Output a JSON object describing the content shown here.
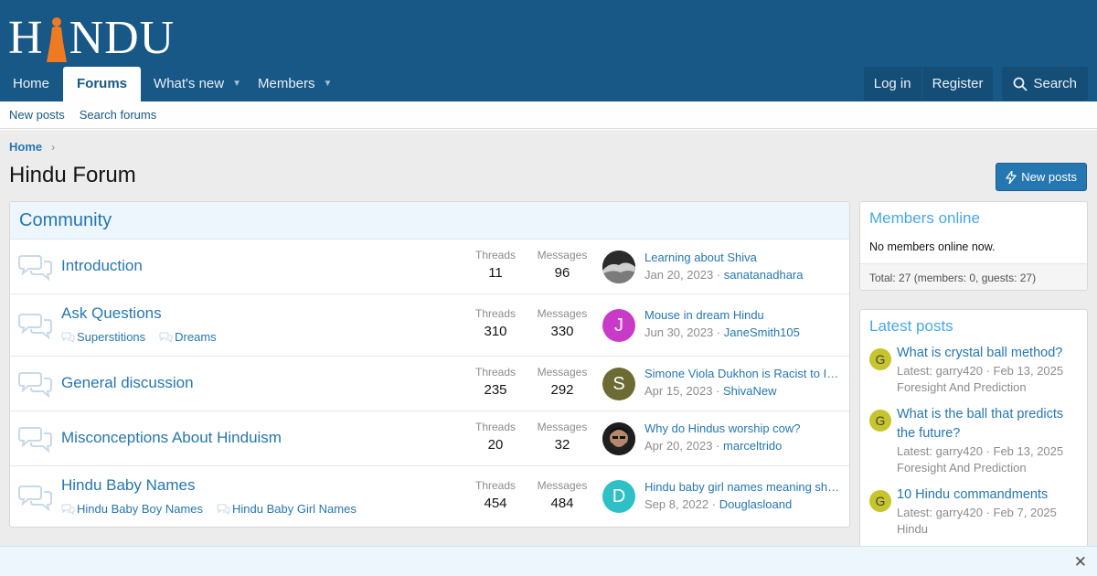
{
  "logo": {
    "left": "H",
    "right": "NDU"
  },
  "nav": {
    "tabs": [
      {
        "label": "Home"
      },
      {
        "label": "Forums"
      },
      {
        "label": "What's new"
      },
      {
        "label": "Members"
      }
    ],
    "login": "Log in",
    "register": "Register",
    "search": "Search"
  },
  "subnav": {
    "new_posts": "New posts",
    "search_forums": "Search forums"
  },
  "breadcrumb": {
    "home": "Home"
  },
  "page": {
    "title": "Hindu Forum",
    "new_posts_button": "New posts"
  },
  "community": {
    "title": "Community",
    "threads_label": "Threads",
    "messages_label": "Messages",
    "nodes": [
      {
        "title": "Introduction",
        "threads": "11",
        "messages": "96",
        "last_title": "Learning about Shiva",
        "last_date": "Jan 20, 2023",
        "last_user": "sanatanadhara",
        "avatar_letter": "",
        "avatar_color": "#2b2b2b",
        "subforums": []
      },
      {
        "title": "Ask Questions",
        "threads": "310",
        "messages": "330",
        "last_title": "Mouse in dream Hindu",
        "last_date": "Jun 30, 2023",
        "last_user": "JaneSmith105",
        "avatar_letter": "J",
        "avatar_color": "#c93ac9",
        "subforums": [
          "Superstitions",
          "Dreams"
        ]
      },
      {
        "title": "General discussion",
        "threads": "235",
        "messages": "292",
        "last_title": "Simone Viola Dukhon is Racist to In...",
        "last_date": "Apr 15, 2023",
        "last_user": "ShivaNew",
        "avatar_letter": "S",
        "avatar_color": "#6b6b33",
        "subforums": []
      },
      {
        "title": "Misconceptions About Hinduism",
        "threads": "20",
        "messages": "32",
        "last_title": "Why do Hindus worship cow?",
        "last_date": "Apr 20, 2023",
        "last_user": "marceltrido",
        "avatar_letter": "",
        "avatar_color": "#3a2e28",
        "subforums": []
      },
      {
        "title": "Hindu Baby Names",
        "threads": "454",
        "messages": "484",
        "last_title": "Hindu baby girl names meaning shiva",
        "last_date": "Sep 8, 2022",
        "last_user": "Douglasloand",
        "avatar_letter": "D",
        "avatar_color": "#2ec0c6",
        "subforums": [
          "Hindu Baby Boy Names",
          "Hindu Baby Girl Names"
        ]
      }
    ]
  },
  "members_online": {
    "title": "Members online",
    "none": "No members online now.",
    "total": "Total: 27 (members: 0, guests: 27)"
  },
  "latest_posts": {
    "title": "Latest posts",
    "items": [
      {
        "letter": "G",
        "title": "What is crystal ball method?",
        "meta": "Latest: garry420 · Feb 13, 2025",
        "forum": "Foresight And Prediction"
      },
      {
        "letter": "G",
        "title": "What is the ball that predicts the future?",
        "meta": "Latest: garry420 · Feb 13, 2025",
        "forum": "Foresight And Prediction"
      },
      {
        "letter": "G",
        "title": "10 Hindu commandments",
        "meta": "Latest: garry420 · Feb 7, 2025",
        "forum": "Hindu"
      }
    ]
  },
  "notice": {
    "close": "✕"
  },
  "colors": {
    "header": "#185886",
    "link": "#2577b1",
    "accent": "#47a7eb"
  }
}
